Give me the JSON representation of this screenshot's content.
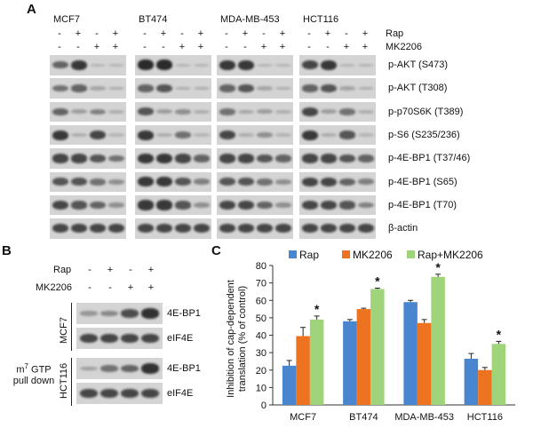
{
  "panel_a": {
    "letter": "A",
    "cell_lines": [
      "MCF7",
      "BT474",
      "MDA-MB-453",
      "HCT116"
    ],
    "treatments": [
      {
        "name": "Rap",
        "signs": [
          "-",
          "+",
          "-",
          "+"
        ]
      },
      {
        "name": "MK2206",
        "signs": [
          "-",
          "-",
          "+",
          "+"
        ]
      }
    ],
    "rows": [
      {
        "label": "p-AKT (S473)",
        "levels": [
          [
            0.6,
            0.9,
            0.05,
            0.05
          ],
          [
            1,
            1,
            0.05,
            0.05
          ],
          [
            0.9,
            0.9,
            0.05,
            0.05
          ],
          [
            0.8,
            0.9,
            0.05,
            0.05
          ]
        ]
      },
      {
        "label": "p-AKT (T308)",
        "levels": [
          [
            0.5,
            0.6,
            0.15,
            0.1
          ],
          [
            0.6,
            0.7,
            0.1,
            0.1
          ],
          [
            0.6,
            0.7,
            0.15,
            0.1
          ],
          [
            0.6,
            0.7,
            0.15,
            0.1
          ]
        ]
      },
      {
        "label": "p-p70S6K (T389)",
        "levels": [
          [
            0.6,
            0.2,
            0.4,
            0.1
          ],
          [
            0.7,
            0.2,
            0.3,
            0.1
          ],
          [
            0.5,
            0.15,
            0.2,
            0.1
          ],
          [
            0.8,
            0.2,
            0.5,
            0.1
          ]
        ]
      },
      {
        "label": "p-S6 (S235/236)",
        "levels": [
          [
            0.9,
            0.1,
            0.8,
            0.05
          ],
          [
            0.9,
            0.1,
            0.5,
            0.05
          ],
          [
            0.8,
            0.1,
            0.3,
            0.05
          ],
          [
            0.9,
            0.1,
            0.7,
            0.05
          ]
        ]
      },
      {
        "label": "p-4E-BP1 (T37/46)",
        "levels": [
          [
            0.8,
            0.8,
            0.7,
            0.5
          ],
          [
            0.9,
            0.9,
            0.8,
            0.6
          ],
          [
            0.8,
            0.8,
            0.7,
            0.6
          ],
          [
            0.8,
            0.8,
            0.7,
            0.6
          ]
        ]
      },
      {
        "label": "p-4E-BP1 (S65)",
        "levels": [
          [
            0.7,
            0.7,
            0.5,
            0.3
          ],
          [
            0.9,
            0.9,
            0.7,
            0.4
          ],
          [
            0.7,
            0.7,
            0.5,
            0.3
          ],
          [
            0.8,
            0.8,
            0.6,
            0.4
          ]
        ]
      },
      {
        "label": "p-4E-BP1 (T70)",
        "levels": [
          [
            0.8,
            0.7,
            0.6,
            0.3
          ],
          [
            0.9,
            0.9,
            0.7,
            0.3
          ],
          [
            0.8,
            0.8,
            0.6,
            0.3
          ],
          [
            0.8,
            0.8,
            0.7,
            0.4
          ]
        ]
      },
      {
        "label": "β-actin",
        "levels": [
          [
            0.8,
            0.8,
            0.8,
            0.8
          ],
          [
            0.8,
            0.8,
            0.8,
            0.8
          ],
          [
            0.8,
            0.8,
            0.8,
            0.8
          ],
          [
            0.8,
            0.8,
            0.8,
            0.8
          ]
        ]
      }
    ]
  },
  "panel_b": {
    "letter": "B",
    "treatments": [
      {
        "name": "Rap",
        "signs": [
          "-",
          "+",
          "-",
          "+"
        ]
      },
      {
        "name": "MK2206",
        "signs": [
          "-",
          "-",
          "+",
          "+"
        ]
      }
    ],
    "pulldown_label_prefix": "m",
    "pulldown_label_sup": "7",
    "pulldown_label_rest": " GTP",
    "pulldown_label_line2": "pull down",
    "groups": [
      {
        "cell_line": "MCF7",
        "rows": [
          {
            "label": "4E-BP1",
            "levels": [
              0.25,
              0.35,
              0.75,
              0.95
            ]
          },
          {
            "label": "eIF4E",
            "levels": [
              0.8,
              0.8,
              0.8,
              0.8
            ]
          }
        ]
      },
      {
        "cell_line": "HCT116",
        "rows": [
          {
            "label": "4E-BP1",
            "levels": [
              0.2,
              0.5,
              0.6,
              0.95
            ]
          },
          {
            "label": "eIF4E",
            "levels": [
              0.8,
              0.8,
              0.8,
              0.8
            ]
          }
        ]
      }
    ]
  },
  "panel_c": {
    "letter": "C",
    "colors": {
      "Rap": "#4a86d0",
      "MK2206": "#ee7320",
      "Rap+MK2206": "#9fd47a"
    },
    "chart_data": {
      "type": "bar",
      "categories": [
        "MCF7",
        "BT474",
        "MDA-MB-453",
        "HCT116"
      ],
      "series": [
        {
          "name": "Rap",
          "values": [
            22.5,
            48,
            59,
            26.5
          ],
          "errors": [
            3,
            1,
            1,
            3
          ]
        },
        {
          "name": "MK2206",
          "values": [
            39.5,
            55,
            47,
            20
          ],
          "errors": [
            5,
            0.5,
            2,
            1.5
          ]
        },
        {
          "name": "Rap+MK2206",
          "values": [
            49,
            66.5,
            73.5,
            35
          ],
          "errors": [
            2,
            0.5,
            1.5,
            1.5
          ]
        }
      ],
      "significance": [
        "*",
        "*",
        "*",
        "*"
      ],
      "ylabel_line1": "Inhibition of cap-dependent",
      "ylabel_line2": "translation  (% of control)",
      "ylim": [
        0,
        80
      ],
      "yticks": [
        "0",
        "10",
        "20",
        "30",
        "40",
        "50",
        "60",
        "70",
        "80"
      ],
      "legend_position": "top"
    }
  }
}
